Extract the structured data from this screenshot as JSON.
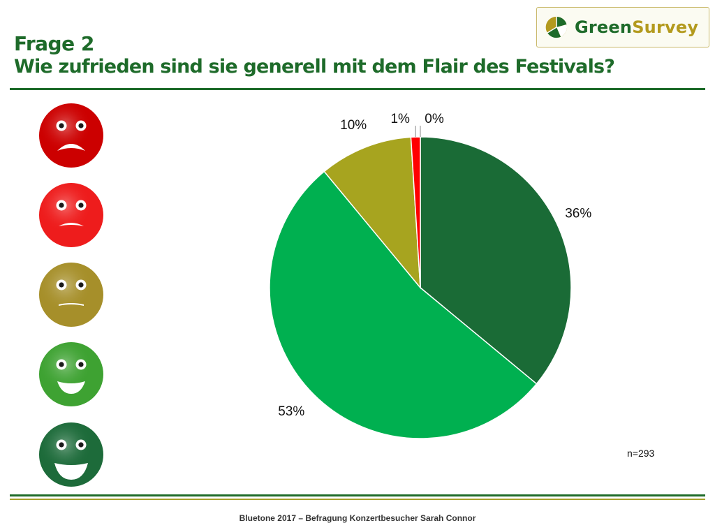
{
  "header": {
    "title_line1": "Frage 2",
    "title_line2": "Wie zufrieden sind sie generell mit dem Flair des Festivals?"
  },
  "logo": {
    "part1": "Green",
    "part2": "Survey",
    "colors": {
      "green": "#1e6b2a",
      "gold": "#b39a1e"
    }
  },
  "smileys": [
    {
      "name": "very-dissatisfied",
      "color": "#cc0000",
      "mouth": "sad-strong"
    },
    {
      "name": "dissatisfied",
      "color": "#ee1c1c",
      "mouth": "sad"
    },
    {
      "name": "neutral",
      "color": "#a68f2a",
      "mouth": "slight-sad"
    },
    {
      "name": "satisfied",
      "color": "#3ea232",
      "mouth": "smile"
    },
    {
      "name": "very-satisfied",
      "color": "#1d6b3a",
      "mouth": "big-smile"
    }
  ],
  "chart_data": {
    "type": "pie",
    "title": "",
    "start_angle_deg": 0,
    "direction": "clockwise",
    "slices": [
      {
        "value": 36,
        "label": "36%",
        "color": "#1a6b36"
      },
      {
        "value": 53,
        "label": "53%",
        "color": "#00b050"
      },
      {
        "value": 10,
        "label": "10%",
        "color": "#a7a41f"
      },
      {
        "value": 1,
        "label": "1%",
        "color": "#ff0000"
      },
      {
        "value": 0,
        "label": "0%",
        "color": "#c00000"
      }
    ]
  },
  "sample_size": "n=293",
  "footer": "Bluetone 2017 – Befragung Konzertbesucher Sarah Connor"
}
